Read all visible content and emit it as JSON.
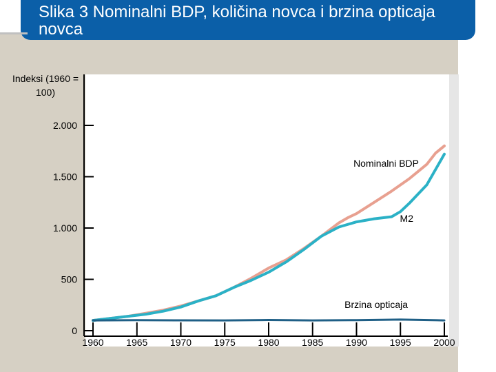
{
  "title": "Slika 3 Nominalni BDP, količina novca i brzina opticaja novca",
  "chart_data": {
    "type": "line",
    "ylabel": "Indeksi (1960 = 100)",
    "xlabel": "",
    "xlim": [
      1960,
      2000
    ],
    "ylim": [
      0,
      2000
    ],
    "x_ticks": [
      1960,
      1965,
      1970,
      1975,
      1980,
      1985,
      1990,
      1995,
      2000
    ],
    "y_ticks": [
      {
        "value": 0,
        "label": "0"
      },
      {
        "value": 500,
        "label": "500"
      },
      {
        "value": 1000,
        "label": "1.000"
      },
      {
        "value": 1500,
        "label": "1.500"
      },
      {
        "value": 2000,
        "label": "2.000"
      }
    ],
    "colors": {
      "nominal": "#e8a090",
      "m2": "#2bb1c6",
      "velocity": "#1f5f86"
    },
    "series": [
      {
        "name": "Nominalni BDP",
        "key": "nominal",
        "x": [
          1960,
          1962,
          1964,
          1966,
          1968,
          1970,
          1972,
          1974,
          1976,
          1978,
          1980,
          1982,
          1984,
          1986,
          1988,
          1989,
          1990,
          1992,
          1994,
          1996,
          1998,
          1999,
          2000
        ],
        "values": [
          100,
          120,
          140,
          170,
          200,
          240,
          290,
          340,
          420,
          510,
          610,
          690,
          800,
          920,
          1050,
          1100,
          1140,
          1250,
          1360,
          1480,
          1620,
          1730,
          1800
        ]
      },
      {
        "name": "M2",
        "key": "m2",
        "x": [
          1960,
          1962,
          1964,
          1966,
          1968,
          1970,
          1972,
          1974,
          1976,
          1978,
          1980,
          1982,
          1984,
          1986,
          1988,
          1990,
          1992,
          1994,
          1995,
          1996,
          1998,
          2000
        ],
        "values": [
          100,
          120,
          140,
          160,
          190,
          230,
          290,
          340,
          420,
          490,
          570,
          670,
          790,
          920,
          1010,
          1060,
          1090,
          1110,
          1160,
          1240,
          1420,
          1720
        ]
      },
      {
        "name": "Brzina opticaja",
        "key": "velocity",
        "x": [
          1960,
          1965,
          1970,
          1975,
          1980,
          1985,
          1990,
          1995,
          2000
        ],
        "values": [
          100,
          103,
          101,
          100,
          104,
          100,
          103,
          108,
          100
        ]
      }
    ]
  }
}
